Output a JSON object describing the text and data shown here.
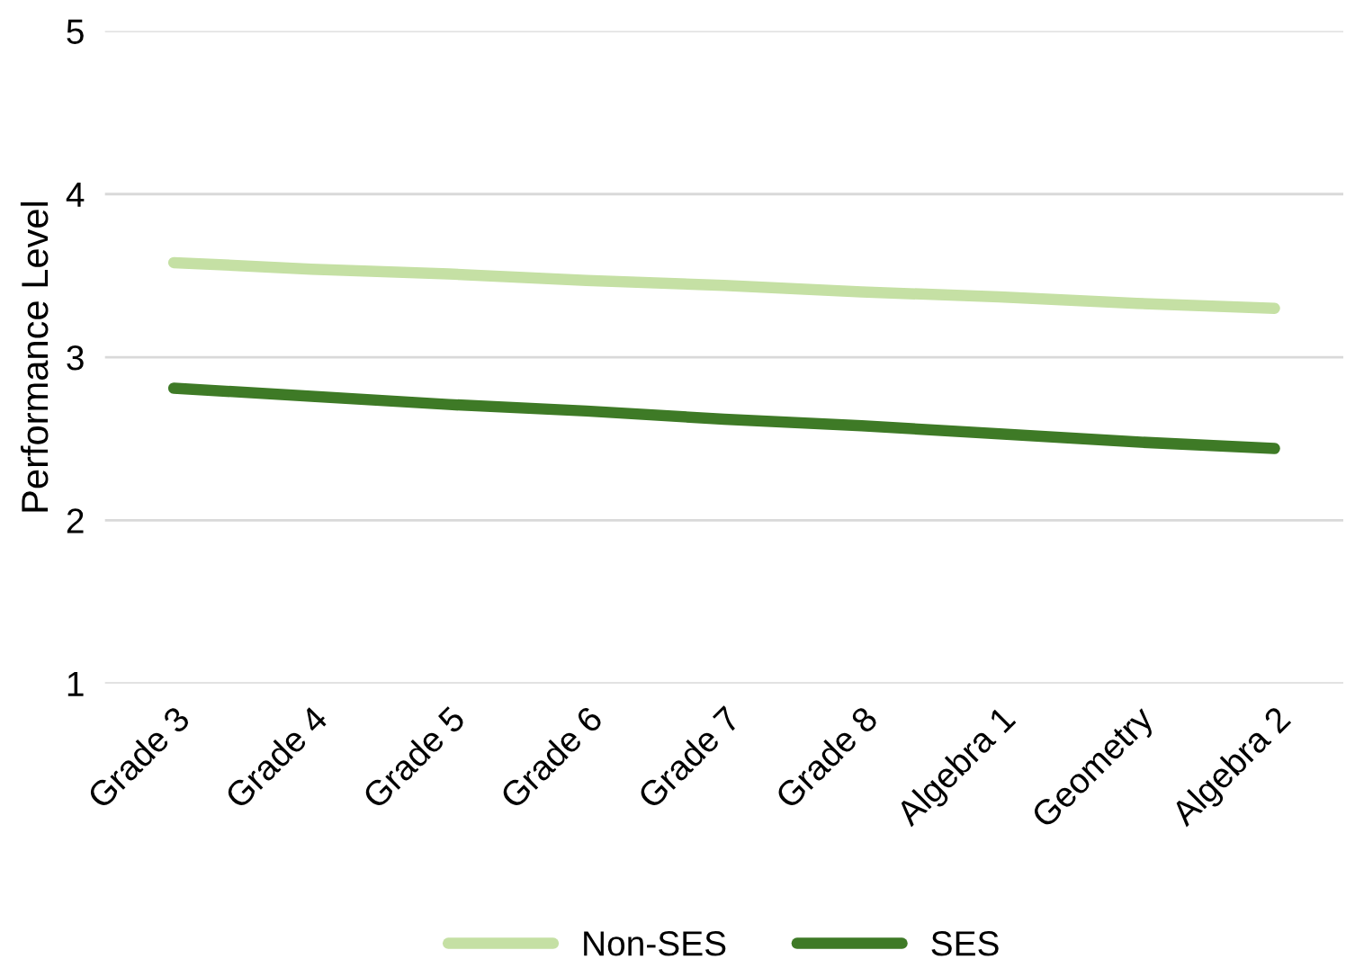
{
  "chart_data": {
    "type": "line",
    "ylabel": "Performance Level",
    "categories": [
      "Grade 3",
      "Grade 4",
      "Grade 5",
      "Grade 6",
      "Grade 7",
      "Grade 8",
      "Algebra 1",
      "Geometry",
      "Algebra 2"
    ],
    "series": [
      {
        "name": "Non-SES",
        "color": "#c5e0a4",
        "values": [
          3.58,
          3.54,
          3.51,
          3.47,
          3.44,
          3.4,
          3.37,
          3.33,
          3.3
        ]
      },
      {
        "name": "SES",
        "color": "#3e7a26",
        "values": [
          2.81,
          2.76,
          2.71,
          2.67,
          2.62,
          2.58,
          2.53,
          2.48,
          2.44
        ]
      }
    ],
    "ylim": [
      1,
      5
    ],
    "yticks": [
      1,
      2,
      3,
      4,
      5
    ],
    "grid": "y",
    "legend": "bottom",
    "marker": "none",
    "line_style": "solid"
  }
}
